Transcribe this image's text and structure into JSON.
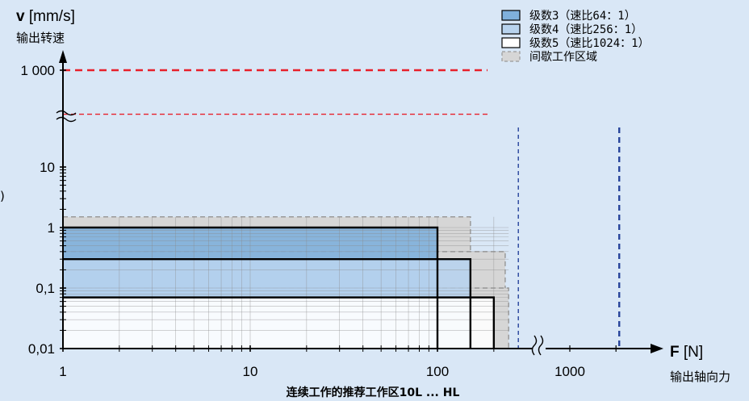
{
  "chart_data": {
    "type": "area",
    "yaxis": {
      "symbol": "v",
      "unit": "[mm/s]",
      "label": "输出转速",
      "ticks": [
        "1 000",
        "10",
        "1",
        "0,1",
        "0,01"
      ]
    },
    "xaxis": {
      "symbol": "F",
      "unit": "[N]",
      "label": "输出轴向力",
      "ticks": [
        "1",
        "10",
        "100",
        "1000"
      ]
    },
    "footer": "连续工作的推荐工作区10L ... HL",
    "side_mark": ")",
    "legend": [
      {
        "label": "级数3（速比64：1）",
        "fill": "#7fb0dc",
        "style": "solid"
      },
      {
        "label": "级数4（速比256：1）",
        "fill": "#b8d3ee",
        "style": "solid"
      },
      {
        "label": "级数5（速比1024：1）",
        "fill": "#ffffff",
        "style": "solid"
      },
      {
        "label": "间歇工作区域",
        "fill": "#d6d6d6",
        "style": "dashed"
      }
    ],
    "continuous_regions": [
      {
        "series": "级数3",
        "x_range": [
          1,
          100
        ],
        "y_range": [
          0.01,
          1
        ],
        "fill": "#7fb0dc"
      },
      {
        "series": "级数4",
        "x_range": [
          1,
          150
        ],
        "y_range": [
          0.01,
          0.3
        ],
        "fill": "#b8d3ee"
      },
      {
        "series": "级数5",
        "x_range": [
          1,
          200
        ],
        "y_range": [
          0.01,
          0.07
        ],
        "fill": "#ffffff"
      }
    ],
    "intermittent_regions": [
      {
        "x_range": [
          1,
          150
        ],
        "y_range": [
          0.01,
          1.5
        ]
      },
      {
        "x_range": [
          1,
          230
        ],
        "y_range": [
          0.01,
          0.4
        ]
      },
      {
        "x_range": [
          1,
          240
        ],
        "y_range": [
          0.01,
          0.1
        ]
      }
    ],
    "reference_lines": [
      {
        "orientation": "horizontal",
        "y": 1000,
        "color": "#e8202a",
        "style": "dashed"
      },
      {
        "orientation": "horizontal",
        "y": 300,
        "color": "#e8202a",
        "style": "dashed"
      },
      {
        "orientation": "vertical",
        "x": 260,
        "color": "#27449b",
        "style": "dashed"
      },
      {
        "orientation": "vertical",
        "x": 2100,
        "color": "#27449b",
        "style": "dashed"
      }
    ],
    "scale": {
      "x": "log",
      "y": "log"
    },
    "xlim": [
      1,
      2500
    ],
    "ylim": [
      0.01,
      1000
    ],
    "grid": true
  }
}
